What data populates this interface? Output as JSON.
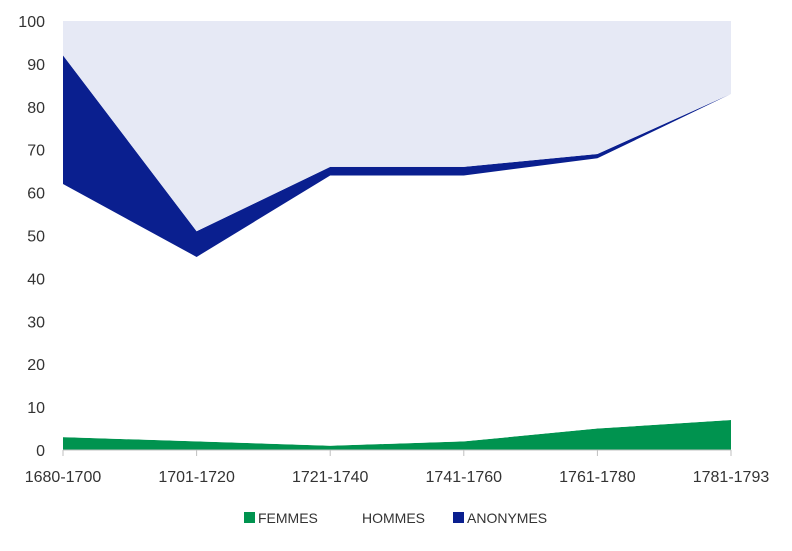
{
  "chart_data": {
    "type": "area",
    "stacked": true,
    "categories": [
      "1680-1700",
      "1701-1720",
      "1721-1740",
      "1741-1760",
      "1761-1780",
      "1781-1793"
    ],
    "series": [
      {
        "name": "FEMMES",
        "color": "#00934F",
        "values": [
          3,
          2,
          1,
          2,
          5,
          7
        ]
      },
      {
        "name": "HOMMES",
        "color": "#FFFFFF",
        "values": [
          59,
          43,
          63,
          62,
          63,
          76
        ]
      },
      {
        "name": "ANONYMES",
        "color": "#0A1F8F",
        "values": [
          30,
          6,
          2,
          2,
          1,
          0
        ]
      },
      {
        "name": "",
        "color": "#E6E9F5",
        "values": [
          8,
          49,
          34,
          34,
          31,
          17
        ]
      }
    ],
    "ylim": [
      0,
      100
    ],
    "yticks": [
      0,
      10,
      20,
      30,
      40,
      50,
      60,
      70,
      80,
      90,
      100
    ],
    "grid": false,
    "legend": {
      "position": "bottom",
      "entries": [
        "FEMMES",
        "HOMMES",
        "ANONYMES"
      ]
    }
  }
}
